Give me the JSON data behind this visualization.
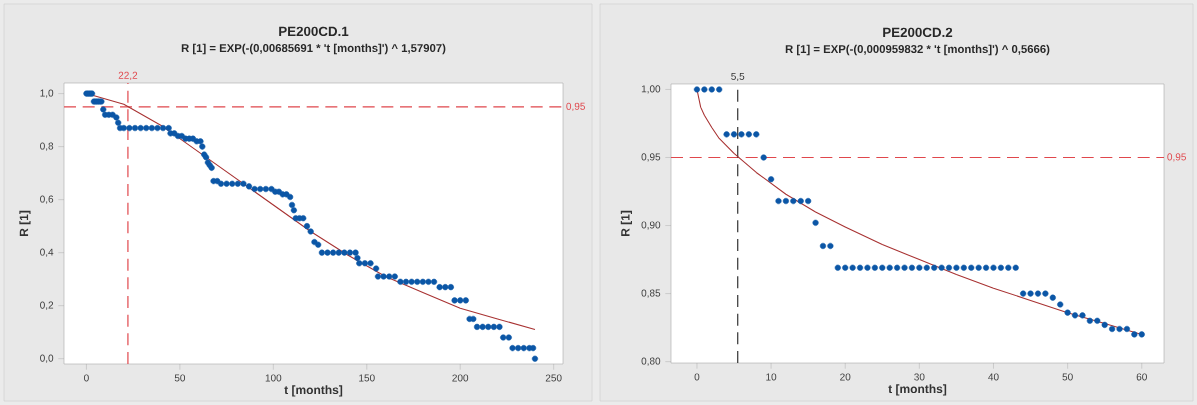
{
  "chart_data": [
    {
      "type": "scatter",
      "title": "PE200CD.1",
      "subtitle": "R [1] = EXP(-(0,00685691 * 't [months]') ^ 1,57907)",
      "xlabel": "t [months]",
      "ylabel": "R [1]",
      "xlim": [
        -12,
        255
      ],
      "ylim": [
        -0.02,
        1.04
      ],
      "xticks": [
        0,
        50,
        100,
        150,
        200,
        250
      ],
      "yticks": [
        {
          "value": 0,
          "label": "0,0"
        },
        {
          "value": 0.2,
          "label": "0,2"
        },
        {
          "value": 0.4,
          "label": "0,4"
        },
        {
          "value": 0.6,
          "label": "0,6"
        },
        {
          "value": 0.8,
          "label": "0,8"
        },
        {
          "value": 1.0,
          "label": "1,0"
        }
      ],
      "ref_lines": [
        {
          "axis": "y",
          "value": 0.95,
          "label": "0,95",
          "color": "#e0474c",
          "line_style": "dashed"
        },
        {
          "axis": "x",
          "value": 22.2,
          "label": "22,2",
          "color": "#e0474c",
          "line_style": "dashed"
        }
      ],
      "series": [
        {
          "marker": "circle",
          "color": "#0b56a6",
          "x": [
            0,
            1,
            2,
            3,
            4,
            5,
            6,
            7,
            8,
            9,
            10,
            12,
            14,
            16,
            17,
            18,
            20,
            23,
            26,
            29,
            32,
            35,
            38,
            41,
            44,
            45,
            47,
            49,
            51,
            53,
            55,
            57,
            59,
            61,
            62,
            63,
            64,
            65,
            66,
            67,
            68,
            70,
            72,
            75,
            78,
            81,
            84,
            87,
            90,
            93,
            96,
            99,
            101,
            103,
            105,
            107,
            109,
            110,
            111,
            112,
            114,
            116,
            118,
            120,
            122,
            124,
            126,
            129,
            132,
            135,
            138,
            141,
            144,
            145,
            146,
            149,
            152,
            155,
            156,
            159,
            162,
            165,
            168,
            171,
            174,
            177,
            180,
            183,
            186,
            189,
            192,
            195,
            197,
            200,
            203,
            205,
            207,
            209,
            212,
            215,
            218,
            221,
            223,
            226,
            228,
            231,
            234,
            237,
            239,
            240
          ],
          "values": [
            1.0,
            1.0,
            1.0,
            1.0,
            0.97,
            0.97,
            0.97,
            0.97,
            0.97,
            0.94,
            0.92,
            0.92,
            0.92,
            0.91,
            0.89,
            0.87,
            0.87,
            0.87,
            0.87,
            0.87,
            0.87,
            0.87,
            0.87,
            0.87,
            0.87,
            0.85,
            0.85,
            0.84,
            0.84,
            0.83,
            0.83,
            0.83,
            0.82,
            0.82,
            0.8,
            0.77,
            0.76,
            0.74,
            0.73,
            0.72,
            0.67,
            0.67,
            0.66,
            0.66,
            0.66,
            0.66,
            0.66,
            0.65,
            0.64,
            0.64,
            0.64,
            0.64,
            0.63,
            0.63,
            0.62,
            0.62,
            0.61,
            0.58,
            0.56,
            0.53,
            0.53,
            0.53,
            0.5,
            0.48,
            0.44,
            0.43,
            0.4,
            0.4,
            0.4,
            0.4,
            0.4,
            0.4,
            0.4,
            0.38,
            0.36,
            0.36,
            0.36,
            0.34,
            0.31,
            0.31,
            0.31,
            0.31,
            0.29,
            0.29,
            0.29,
            0.29,
            0.29,
            0.29,
            0.29,
            0.27,
            0.27,
            0.27,
            0.22,
            0.22,
            0.22,
            0.15,
            0.15,
            0.12,
            0.12,
            0.12,
            0.12,
            0.12,
            0.08,
            0.08,
            0.04,
            0.04,
            0.04,
            0.04,
            0.04,
            0.0
          ]
        },
        {
          "type": "line",
          "color": "#a83232",
          "x": [
            0,
            20,
            40,
            60,
            80,
            100,
            120,
            140,
            160,
            180,
            200,
            220,
            240
          ],
          "values": [
            1.0,
            0.96,
            0.88,
            0.78,
            0.68,
            0.58,
            0.48,
            0.39,
            0.31,
            0.25,
            0.19,
            0.15,
            0.11
          ]
        }
      ]
    },
    {
      "type": "scatter",
      "title": "PE200CD.2",
      "subtitle": "R [1] = EXP(-(0,000959832 * 't [months]') ^ 0,5666)",
      "xlabel": "t [months]",
      "ylabel": "R [1]",
      "xlim": [
        -3.5,
        63
      ],
      "ylim": [
        0.799,
        1.004
      ],
      "xticks": [
        0,
        10,
        20,
        30,
        40,
        50,
        60
      ],
      "yticks": [
        {
          "value": 0.8,
          "label": "0,80"
        },
        {
          "value": 0.85,
          "label": "0,85"
        },
        {
          "value": 0.9,
          "label": "0,90"
        },
        {
          "value": 0.95,
          "label": "0,95"
        },
        {
          "value": 1.0,
          "label": "1,00"
        }
      ],
      "ref_lines": [
        {
          "axis": "y",
          "value": 0.95,
          "label": "0,95",
          "color": "#e0474c",
          "line_style": "dashed"
        },
        {
          "axis": "x",
          "value": 5.5,
          "label": "5,5",
          "color": "#333333",
          "line_style": "dashed"
        }
      ],
      "series": [
        {
          "marker": "circle",
          "color": "#0b56a6",
          "x": [
            0,
            1,
            2,
            3,
            4,
            5,
            6,
            7,
            8,
            9,
            10,
            11,
            12,
            13,
            14,
            15,
            16,
            17,
            18,
            19,
            20,
            21,
            22,
            23,
            24,
            25,
            26,
            27,
            28,
            29,
            30,
            31,
            32,
            33,
            34,
            35,
            36,
            37,
            38,
            39,
            40,
            41,
            42,
            43,
            44,
            45,
            46,
            47,
            48,
            49,
            50,
            51,
            52,
            53,
            54,
            55,
            56,
            57,
            58,
            59,
            60
          ],
          "values": [
            1.0,
            1.0,
            1.0,
            1.0,
            0.967,
            0.967,
            0.967,
            0.967,
            0.967,
            0.95,
            0.934,
            0.918,
            0.918,
            0.918,
            0.918,
            0.918,
            0.902,
            0.885,
            0.885,
            0.869,
            0.869,
            0.869,
            0.869,
            0.869,
            0.869,
            0.869,
            0.869,
            0.869,
            0.869,
            0.869,
            0.869,
            0.869,
            0.869,
            0.869,
            0.869,
            0.869,
            0.869,
            0.869,
            0.869,
            0.869,
            0.869,
            0.869,
            0.869,
            0.869,
            0.85,
            0.85,
            0.85,
            0.85,
            0.847,
            0.842,
            0.836,
            0.834,
            0.834,
            0.83,
            0.83,
            0.827,
            0.824,
            0.824,
            0.824,
            0.82,
            0.82
          ]
        },
        {
          "type": "line",
          "color": "#a83232",
          "x": [
            0,
            0.5,
            1,
            2,
            3,
            5,
            8,
            12,
            16,
            20,
            25,
            30,
            35,
            40,
            45,
            50,
            55,
            60
          ],
          "values": [
            1.0,
            0.987,
            0.981,
            0.972,
            0.964,
            0.953,
            0.939,
            0.923,
            0.91,
            0.899,
            0.886,
            0.875,
            0.864,
            0.854,
            0.845,
            0.836,
            0.828,
            0.82
          ]
        }
      ]
    }
  ]
}
